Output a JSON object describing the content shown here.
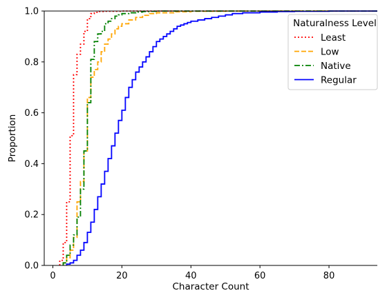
{
  "chart_data": {
    "type": "line",
    "title": "",
    "xlabel": "Character Count",
    "ylabel": "Proportion",
    "xlim": [
      -2.5,
      94
    ],
    "ylim": [
      0,
      1.0
    ],
    "xticks": [
      0,
      20,
      40,
      60,
      80
    ],
    "yticks": [
      0.0,
      0.2,
      0.4,
      0.6,
      0.8,
      1.0
    ],
    "xtick_labels": [
      "0",
      "20",
      "40",
      "60",
      "80"
    ],
    "ytick_labels": [
      "0.0",
      "0.2",
      "0.4",
      "0.6",
      "0.8",
      "1.0"
    ],
    "grid": false,
    "step": true,
    "legend": {
      "title": "Naturalness Level",
      "placement": "top-right"
    },
    "series": [
      {
        "name": "Least",
        "color": "#ff0000",
        "style": "dotted",
        "x": [
          2,
          3,
          4,
          5,
          6,
          7,
          8,
          9,
          10,
          11,
          12,
          13,
          15,
          20,
          30
        ],
        "y": [
          0.02,
          0.09,
          0.25,
          0.51,
          0.75,
          0.83,
          0.87,
          0.92,
          0.97,
          0.99,
          0.995,
          0.998,
          0.999,
          1.0,
          1.0
        ]
      },
      {
        "name": "Low",
        "color": "#ffa500",
        "style": "dashed",
        "x": [
          3,
          4,
          5,
          6,
          7,
          8,
          9,
          10,
          11,
          12,
          13,
          14,
          15,
          16,
          17,
          18,
          19,
          20,
          22,
          24,
          26,
          28,
          30,
          35,
          40,
          50,
          60
        ],
        "y": [
          0.01,
          0.03,
          0.06,
          0.11,
          0.25,
          0.33,
          0.45,
          0.66,
          0.74,
          0.77,
          0.8,
          0.84,
          0.87,
          0.89,
          0.91,
          0.93,
          0.94,
          0.95,
          0.965,
          0.975,
          0.983,
          0.99,
          0.993,
          0.997,
          0.999,
          1.0,
          1.0
        ]
      },
      {
        "name": "Native",
        "color": "#008000",
        "style": "dashdot",
        "x": [
          3,
          4,
          5,
          6,
          7,
          8,
          9,
          10,
          11,
          12,
          13,
          14,
          15,
          16,
          17,
          18,
          19,
          20,
          22,
          24,
          26,
          28,
          30,
          35,
          40,
          50
        ],
        "y": [
          0.01,
          0.04,
          0.08,
          0.12,
          0.19,
          0.3,
          0.45,
          0.64,
          0.81,
          0.88,
          0.91,
          0.92,
          0.95,
          0.96,
          0.97,
          0.98,
          0.985,
          0.99,
          0.993,
          0.996,
          0.998,
          0.999,
          1.0,
          1.0,
          1.0,
          1.0
        ]
      },
      {
        "name": "Regular",
        "color": "#0000ff",
        "style": "solid",
        "x": [
          4,
          5,
          6,
          7,
          8,
          9,
          10,
          11,
          12,
          13,
          14,
          15,
          16,
          17,
          18,
          19,
          20,
          21,
          22,
          23,
          24,
          25,
          26,
          27,
          28,
          29,
          30,
          31,
          32,
          33,
          34,
          35,
          36,
          37,
          38,
          39,
          40,
          42,
          44,
          46,
          48,
          50,
          52,
          55,
          60,
          65,
          70,
          80,
          90
        ],
        "y": [
          0.005,
          0.01,
          0.02,
          0.04,
          0.06,
          0.09,
          0.13,
          0.17,
          0.22,
          0.27,
          0.32,
          0.37,
          0.42,
          0.47,
          0.52,
          0.57,
          0.61,
          0.66,
          0.7,
          0.73,
          0.76,
          0.78,
          0.8,
          0.82,
          0.84,
          0.86,
          0.88,
          0.89,
          0.9,
          0.91,
          0.92,
          0.93,
          0.94,
          0.945,
          0.95,
          0.955,
          0.96,
          0.965,
          0.97,
          0.975,
          0.98,
          0.985,
          0.99,
          0.993,
          0.996,
          0.998,
          0.999,
          1.0,
          1.0
        ]
      }
    ]
  }
}
